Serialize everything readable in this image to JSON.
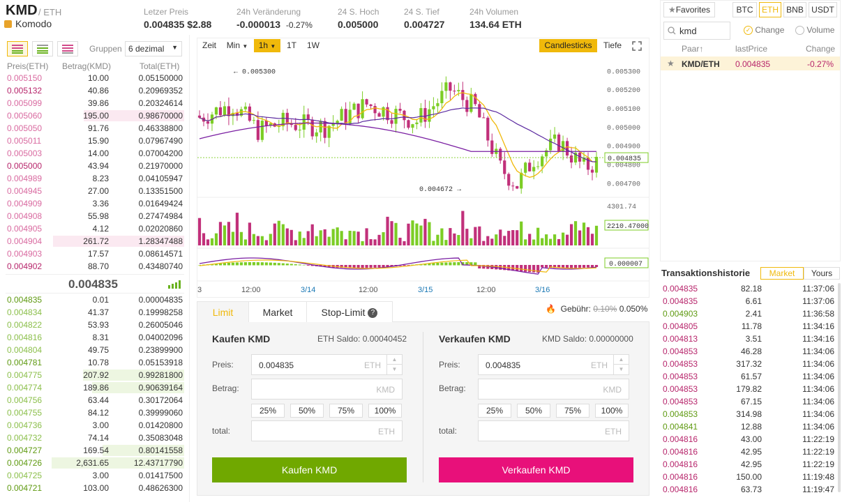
{
  "header": {
    "pair": "KMD",
    "quote": "/ ETH",
    "coin_name": "Komodo",
    "stats": [
      {
        "label": "Letzer Preis",
        "value": "0.004835 $2.88"
      },
      {
        "label": "24h Veränderung",
        "value": "-0.000013",
        "pct": "-0.27%"
      },
      {
        "label": "24 S. Hoch",
        "value": "0.005000"
      },
      {
        "label": "24 S. Tief",
        "value": "0.004727"
      },
      {
        "label": "24h Volumen",
        "value": "134.64 ETH"
      }
    ]
  },
  "orderbook": {
    "groups_label": "Gruppen",
    "groups_value": "6 dezimal",
    "headers": [
      "Preis(ETH)",
      "Betrag(KMD)",
      "Total(ETH)"
    ],
    "asks": [
      [
        "0.005150",
        "10.00",
        "0.05150000"
      ],
      [
        "0.005132",
        "40.86",
        "0.20969352"
      ],
      [
        "0.005099",
        "39.86",
        "0.20324614"
      ],
      [
        "0.005060",
        "195.00",
        "0.98670000"
      ],
      [
        "0.005050",
        "91.76",
        "0.46338800"
      ],
      [
        "0.005011",
        "15.90",
        "0.07967490"
      ],
      [
        "0.005003",
        "14.00",
        "0.07004200"
      ],
      [
        "0.005000",
        "43.94",
        "0.21970000"
      ],
      [
        "0.004989",
        "8.23",
        "0.04105947"
      ],
      [
        "0.004945",
        "27.00",
        "0.13351500"
      ],
      [
        "0.004909",
        "3.36",
        "0.01649424"
      ],
      [
        "0.004908",
        "55.98",
        "0.27474984"
      ],
      [
        "0.004905",
        "4.12",
        "0.02020860"
      ],
      [
        "0.004904",
        "261.72",
        "1.28347488"
      ],
      [
        "0.004903",
        "17.57",
        "0.08614571"
      ],
      [
        "0.004902",
        "88.70",
        "0.43480740"
      ]
    ],
    "last_price": "0.004835",
    "bids": [
      [
        "0.004835",
        "0.01",
        "0.00004835"
      ],
      [
        "0.004834",
        "41.37",
        "0.19998258"
      ],
      [
        "0.004822",
        "53.93",
        "0.26005046"
      ],
      [
        "0.004816",
        "8.31",
        "0.04002096"
      ],
      [
        "0.004804",
        "49.75",
        "0.23899900"
      ],
      [
        "0.004781",
        "10.78",
        "0.05153918"
      ],
      [
        "0.004775",
        "207.92",
        "0.99281800"
      ],
      [
        "0.004774",
        "189.86",
        "0.90639164"
      ],
      [
        "0.004756",
        "63.44",
        "0.30172064"
      ],
      [
        "0.004755",
        "84.12",
        "0.39999060"
      ],
      [
        "0.004736",
        "3.00",
        "0.01420800"
      ],
      [
        "0.004732",
        "74.14",
        "0.35083048"
      ],
      [
        "0.004727",
        "169.54",
        "0.80141558"
      ],
      [
        "0.004726",
        "2,631.65",
        "12.43717790"
      ],
      [
        "0.004725",
        "3.00",
        "0.01417500"
      ],
      [
        "0.004721",
        "103.00",
        "0.48626300"
      ]
    ]
  },
  "chart": {
    "toolbar": {
      "zeit": "Zeit",
      "min": "Min",
      "h1": "1h",
      "t1": "1T",
      "w1": "1W",
      "candles": "Candlesticks",
      "depth": "Tiefe"
    },
    "price_ticks": [
      "0.005300",
      "0.005200",
      "0.005100",
      "0.005000",
      "0.004900",
      "0.004800",
      "0.004700"
    ],
    "current_price": "0.004835",
    "max_label": "0.005300",
    "min_label": "0.004672",
    "vol_max": "4301.74",
    "vol_current": "2210.47000",
    "macd_current": "0.000007",
    "x_labels": [
      "3",
      "12:00",
      "3/14",
      "12:00",
      "3/15",
      "12:00",
      "3/16"
    ],
    "colors": {
      "up": "#7ccd25",
      "down": "#c1307a",
      "ma1": "#f0b90b",
      "ma2": "#7a1fa2"
    }
  },
  "order_form": {
    "tabs": [
      "Limit",
      "Market",
      "Stop-Limit"
    ],
    "fee_label": "Gebühr:",
    "fee_old": "0.10%",
    "fee_new": "0.050%",
    "buy": {
      "title": "Kaufen KMD",
      "balance": "ETH Saldo: 0.00040452",
      "price": "0.004835",
      "price_unit": "ETH",
      "amount_unit": "KMD",
      "total_unit": "ETH",
      "button": "Kaufen KMD"
    },
    "sell": {
      "title": "Verkaufen KMD",
      "balance": "KMD Saldo: 0.00000000",
      "price": "0.004835",
      "price_unit": "ETH",
      "amount_unit": "KMD",
      "total_unit": "ETH",
      "button": "Verkaufen KMD"
    },
    "labels": {
      "price": "Preis:",
      "amount": "Betrag:",
      "total": "total:"
    },
    "pcts": [
      "25%",
      "50%",
      "75%",
      "100%"
    ]
  },
  "market": {
    "favorites": "Favorites",
    "quotes": [
      "BTC",
      "ETH",
      "BNB",
      "USDT"
    ],
    "search": "kmd",
    "radio_change": "Change",
    "radio_volume": "Volume",
    "headers": [
      "Paar",
      "lastPrice",
      "Change"
    ],
    "row": {
      "pair": "KMD/ETH",
      "price": "0.004835",
      "change": "-0.27%"
    }
  },
  "trades": {
    "title": "Transaktionshistorie",
    "tab_market": "Market",
    "tab_yours": "Yours",
    "rows": [
      [
        "0.004835",
        "82.18",
        "11:37:06",
        "s"
      ],
      [
        "0.004835",
        "6.61",
        "11:37:06",
        "s"
      ],
      [
        "0.004903",
        "2.41",
        "11:36:58",
        "b"
      ],
      [
        "0.004805",
        "11.78",
        "11:34:16",
        "s"
      ],
      [
        "0.004813",
        "3.51",
        "11:34:16",
        "s"
      ],
      [
        "0.004853",
        "46.28",
        "11:34:06",
        "s"
      ],
      [
        "0.004853",
        "317.32",
        "11:34:06",
        "s"
      ],
      [
        "0.004853",
        "61.57",
        "11:34:06",
        "s"
      ],
      [
        "0.004853",
        "179.82",
        "11:34:06",
        "s"
      ],
      [
        "0.004853",
        "67.15",
        "11:34:06",
        "s"
      ],
      [
        "0.004853",
        "314.98",
        "11:34:06",
        "b"
      ],
      [
        "0.004841",
        "12.88",
        "11:34:06",
        "b"
      ],
      [
        "0.004816",
        "43.00",
        "11:22:19",
        "s"
      ],
      [
        "0.004816",
        "42.95",
        "11:22:19",
        "s"
      ],
      [
        "0.004816",
        "42.95",
        "11:22:19",
        "s"
      ],
      [
        "0.004816",
        "150.00",
        "11:19:48",
        "s"
      ],
      [
        "0.004816",
        "63.73",
        "11:19:47",
        "s"
      ]
    ]
  }
}
